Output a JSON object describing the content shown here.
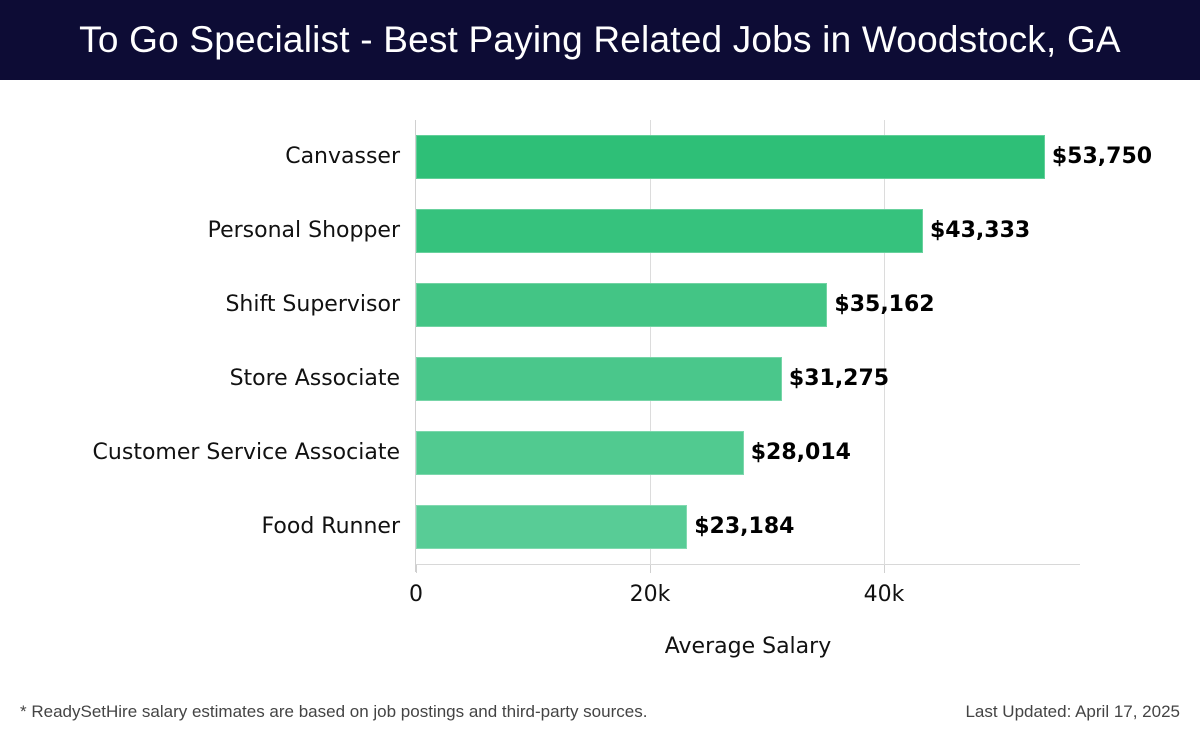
{
  "header": {
    "title": "To Go Specialist - Best Paying Related Jobs in Woodstock, GA"
  },
  "footer": {
    "note": "* ReadySetHire salary estimates are based on job postings and third-party sources.",
    "updated": "Last Updated: April 17, 2025"
  },
  "colors": {
    "header_bg": "#0d0c35",
    "bars": [
      "#2ebf77",
      "#36c27d",
      "#43c585",
      "#4ac78b",
      "#51ca90",
      "#58cc96"
    ]
  },
  "chart_data": {
    "type": "bar",
    "orientation": "horizontal",
    "title": "To Go Specialist - Best Paying Related Jobs in Woodstock, GA",
    "xlabel": "Average Salary",
    "ylabel": "",
    "categories": [
      "Canvasser",
      "Personal Shopper",
      "Shift Supervisor",
      "Store Associate",
      "Customer Service Associate",
      "Food Runner"
    ],
    "values": [
      53750,
      43333,
      35162,
      31275,
      28014,
      23184
    ],
    "value_labels": [
      "$53,750",
      "$43,333",
      "$35,162",
      "$31,275",
      "$28,014",
      "$23,184"
    ],
    "xticks": [
      0,
      20000,
      40000
    ],
    "xtick_labels": [
      "0",
      "20k",
      "40k"
    ],
    "xlim": [
      0,
      56700
    ],
    "grid": "vertical",
    "legend": null
  }
}
